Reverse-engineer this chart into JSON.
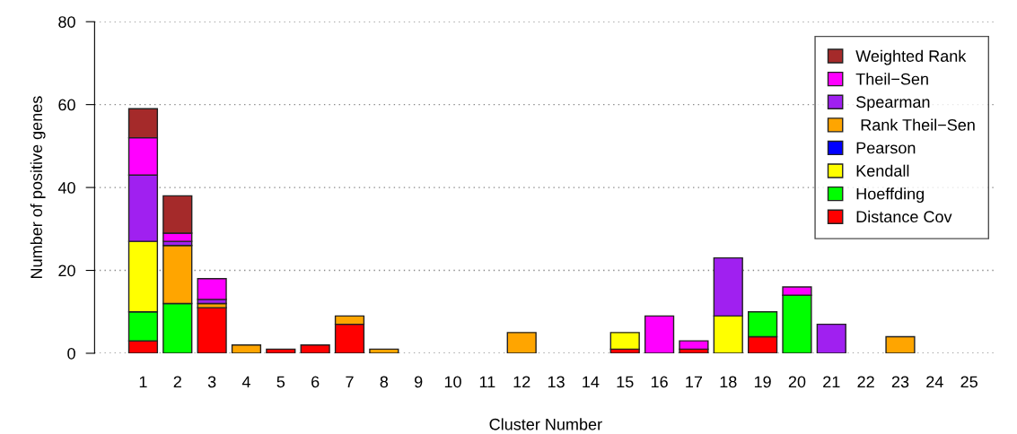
{
  "chart_data": {
    "type": "bar",
    "stacked": true,
    "xlabel": "Cluster Number",
    "ylabel": "Number of positive genes",
    "categories": [
      "1",
      "2",
      "3",
      "4",
      "5",
      "6",
      "7",
      "8",
      "9",
      "10",
      "11",
      "12",
      "13",
      "14",
      "15",
      "16",
      "17",
      "18",
      "19",
      "20",
      "21",
      "22",
      "23",
      "24",
      "25"
    ],
    "ylim": [
      0,
      80
    ],
    "yticks": [
      0,
      20,
      40,
      60,
      80
    ],
    "grid": "y",
    "legend": "top right",
    "series": [
      {
        "name": "Distance Cov",
        "color": "#ff0000",
        "values": [
          3,
          0,
          11,
          0,
          1,
          2,
          7,
          0,
          0,
          0,
          0,
          0,
          0,
          0,
          1,
          0,
          1,
          0,
          4,
          0,
          0,
          0,
          0,
          0,
          0
        ]
      },
      {
        "name": "Hoeffding",
        "color": "#00ff00",
        "values": [
          7,
          12,
          0,
          0,
          0,
          0,
          0,
          0,
          0,
          0,
          0,
          0,
          0,
          0,
          0,
          0,
          0,
          0,
          6,
          14,
          0,
          0,
          0,
          0,
          0
        ]
      },
      {
        "name": "Kendall",
        "color": "#ffff00",
        "values": [
          17,
          0,
          0,
          0,
          0,
          0,
          0,
          0,
          0,
          0,
          0,
          0,
          0,
          0,
          4,
          0,
          0,
          9,
          0,
          0,
          0,
          0,
          0,
          0,
          0
        ]
      },
      {
        "name": "Pearson",
        "color": "#0000ff",
        "values": [
          0,
          0,
          0,
          0,
          0,
          0,
          0,
          0,
          0,
          0,
          0,
          0,
          0,
          0,
          0,
          0,
          0,
          0,
          0,
          0,
          0,
          0,
          0,
          0,
          0
        ]
      },
      {
        "name": " Rank Theil−Sen",
        "color": "#ffa500",
        "values": [
          0,
          14,
          1,
          2,
          0,
          0,
          2,
          1,
          0,
          0,
          0,
          5,
          0,
          0,
          0,
          0,
          0,
          0,
          0,
          0,
          0,
          0,
          4,
          0,
          0
        ]
      },
      {
        "name": "Spearman",
        "color": "#a020f0",
        "values": [
          16,
          1,
          1,
          0,
          0,
          0,
          0,
          0,
          0,
          0,
          0,
          0,
          0,
          0,
          0,
          0,
          0,
          14,
          0,
          0,
          7,
          0,
          0,
          0,
          0
        ]
      },
      {
        "name": "Theil−Sen",
        "color": "#ff00ff",
        "values": [
          9,
          2,
          5,
          0,
          0,
          0,
          0,
          0,
          0,
          0,
          0,
          0,
          0,
          0,
          0,
          9,
          2,
          0,
          0,
          2,
          0,
          0,
          0,
          0,
          0
        ]
      },
      {
        "name": "Weighted Rank",
        "color": "#a52a2a",
        "values": [
          7,
          9,
          0,
          0,
          0,
          0,
          0,
          0,
          0,
          0,
          0,
          0,
          0,
          0,
          0,
          0,
          0,
          0,
          0,
          0,
          0,
          0,
          0,
          0,
          0
        ]
      }
    ]
  }
}
